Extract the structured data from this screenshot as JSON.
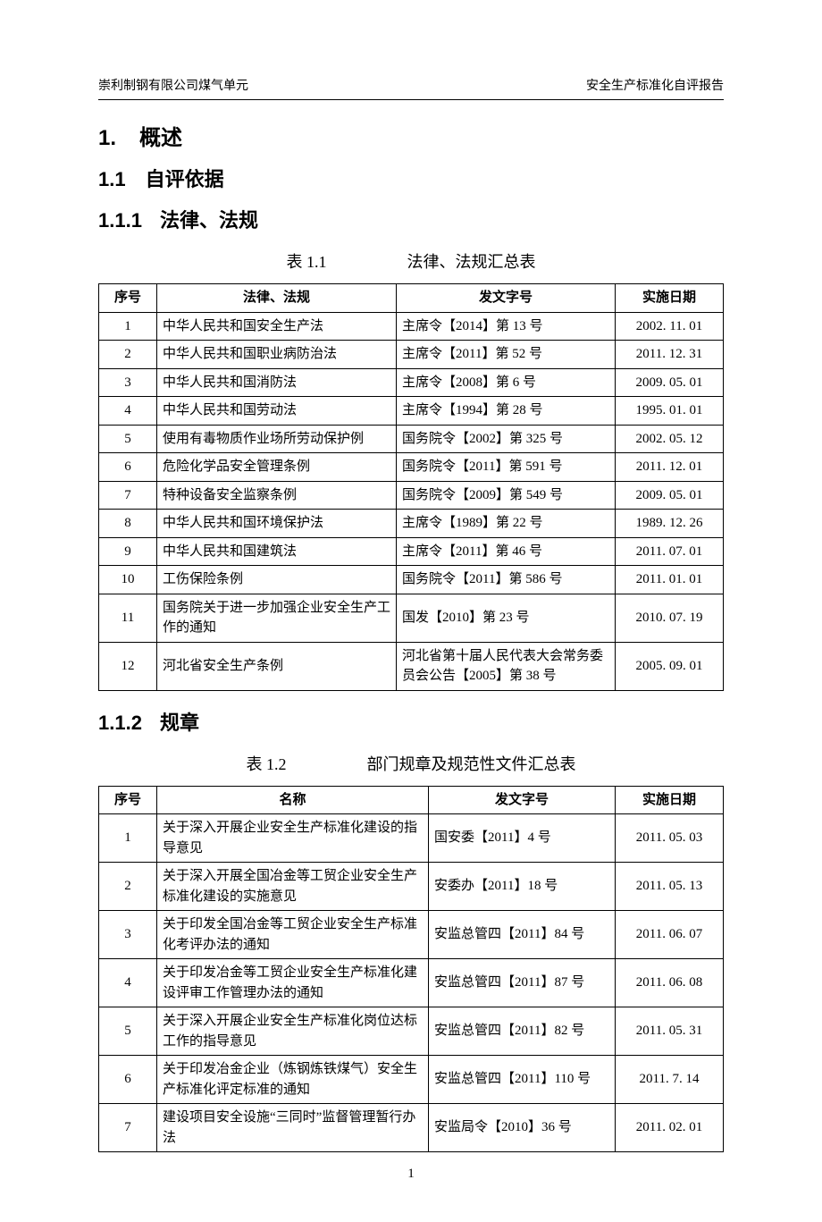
{
  "header": {
    "left": "崇利制钢有限公司煤气单元",
    "right": "安全生产标准化自评报告"
  },
  "sections": {
    "h1_num": "1.",
    "h1_title": "概述",
    "h2_num": "1.1",
    "h2_title": "自评依据",
    "h3a_num": "1.1.1",
    "h3a_title": "法律、法规",
    "h3b_num": "1.1.2",
    "h3b_title": "规章"
  },
  "table1": {
    "caption_num": "表 1.1",
    "caption_title": "法律、法规汇总表",
    "columns": [
      "序号",
      "法律、法规",
      "发文字号",
      "实施日期"
    ],
    "rows": [
      [
        "1",
        "中华人民共和国安全生产法",
        "主席令【2014】第 13 号",
        "2002. 11. 01"
      ],
      [
        "2",
        "中华人民共和国职业病防治法",
        "主席令【2011】第 52 号",
        "2011. 12. 31"
      ],
      [
        "3",
        "中华人民共和国消防法",
        "主席令【2008】第 6 号",
        "2009. 05. 01"
      ],
      [
        "4",
        "中华人民共和国劳动法",
        "主席令【1994】第 28 号",
        "1995. 01. 01"
      ],
      [
        "5",
        "使用有毒物质作业场所劳动保护例",
        "国务院令【2002】第 325 号",
        "2002. 05. 12"
      ],
      [
        "6",
        "危险化学品安全管理条例",
        "国务院令【2011】第 591 号",
        "2011. 12. 01"
      ],
      [
        "7",
        "特种设备安全监察条例",
        "国务院令【2009】第 549 号",
        "2009. 05. 01"
      ],
      [
        "8",
        "中华人民共和国环境保护法",
        "主席令【1989】第 22 号",
        "1989. 12. 26"
      ],
      [
        "9",
        "中华人民共和国建筑法",
        "主席令【2011】第 46 号",
        "2011. 07. 01"
      ],
      [
        "10",
        "工伤保险条例",
        "国务院令【2011】第 586 号",
        "2011. 01. 01"
      ],
      [
        "11",
        "国务院关于进一步加强企业安全生产工作的通知",
        "国发【2010】第 23 号",
        "2010. 07. 19"
      ],
      [
        "12",
        "河北省安全生产条例",
        "河北省第十届人民代表大会常务委员会公告【2005】第 38 号",
        "2005. 09. 01"
      ]
    ]
  },
  "table2": {
    "caption_num": "表 1.2",
    "caption_title": "部门规章及规范性文件汇总表",
    "columns": [
      "序号",
      "名称",
      "发文字号",
      "实施日期"
    ],
    "rows": [
      [
        "1",
        "关于深入开展企业安全生产标准化建设的指导意见",
        "国安委【2011】4 号",
        "2011. 05. 03"
      ],
      [
        "2",
        "关于深入开展全国冶金等工贸企业安全生产标准化建设的实施意见",
        "安委办【2011】18 号",
        "2011. 05. 13"
      ],
      [
        "3",
        "关于印发全国冶金等工贸企业安全生产标准化考评办法的通知",
        "安监总管四【2011】84 号",
        "2011. 06. 07"
      ],
      [
        "4",
        "关于印发冶金等工贸企业安全生产标准化建设评审工作管理办法的通知",
        "安监总管四【2011】87 号",
        "2011. 06. 08"
      ],
      [
        "5",
        "关于深入开展企业安全生产标准化岗位达标工作的指导意见",
        "安监总管四【2011】82 号",
        "2011. 05. 31"
      ],
      [
        "6",
        "关于印发冶金企业（炼钢炼铁煤气）安全生产标准化评定标准的通知",
        "安监总管四【2011】110 号",
        "2011. 7. 14"
      ],
      [
        "7",
        "建设项目安全设施“三同时”监督管理暂行办法",
        "安监局令【2010】36 号",
        "2011. 02. 01"
      ]
    ]
  },
  "page_number": "1"
}
